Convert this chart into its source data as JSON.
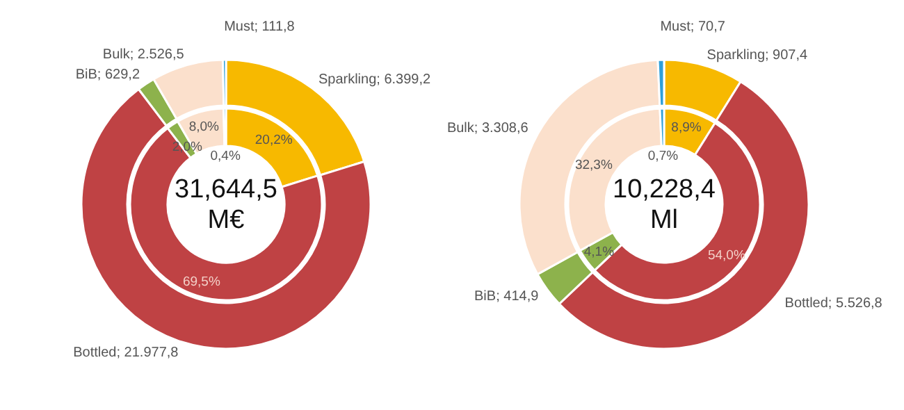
{
  "chart_data": [
    {
      "type": "donut",
      "categories": [
        "Sparkling",
        "Bottled",
        "BiB",
        "Bulk",
        "Must"
      ],
      "colors": [
        "#f7b900",
        "#bf4244",
        "#8db24c",
        "#fbe0cc",
        "#2f9fd8"
      ],
      "series": [
        {
          "values": [
            6399.2,
            21977.8,
            629.2,
            2526.5,
            111.8
          ],
          "value_labels": [
            "6.399,2",
            "21.977,8",
            "629,2",
            "2.526,5",
            "111,8"
          ]
        },
        {
          "values": [
            20.2,
            69.5,
            2.0,
            8.0,
            0.4
          ],
          "value_labels": [
            "20,2%",
            "69,5%",
            "2,0%",
            "8,0%",
            "0,4%"
          ]
        }
      ],
      "annotations": [
        "31,644,5",
        "M€"
      ]
    },
    {
      "type": "donut",
      "categories": [
        "Sparkling",
        "Bottled",
        "BiB",
        "Bulk",
        "Must"
      ],
      "colors": [
        "#f7b900",
        "#bf4244",
        "#8db24c",
        "#fbe0cc",
        "#2f9fd8"
      ],
      "series": [
        {
          "values": [
            907.4,
            5526.8,
            414.9,
            3308.6,
            70.7
          ],
          "value_labels": [
            "907,4",
            "5.526,8",
            "414,9",
            "3.308,6",
            "70,7"
          ]
        },
        {
          "values": [
            8.9,
            54.0,
            4.1,
            32.3,
            0.7
          ],
          "value_labels": [
            "8,9%",
            "54,0%",
            "4,1%",
            "32,3%",
            "0,7%"
          ]
        }
      ],
      "annotations": [
        "10,228,4",
        "Ml"
      ]
    }
  ]
}
